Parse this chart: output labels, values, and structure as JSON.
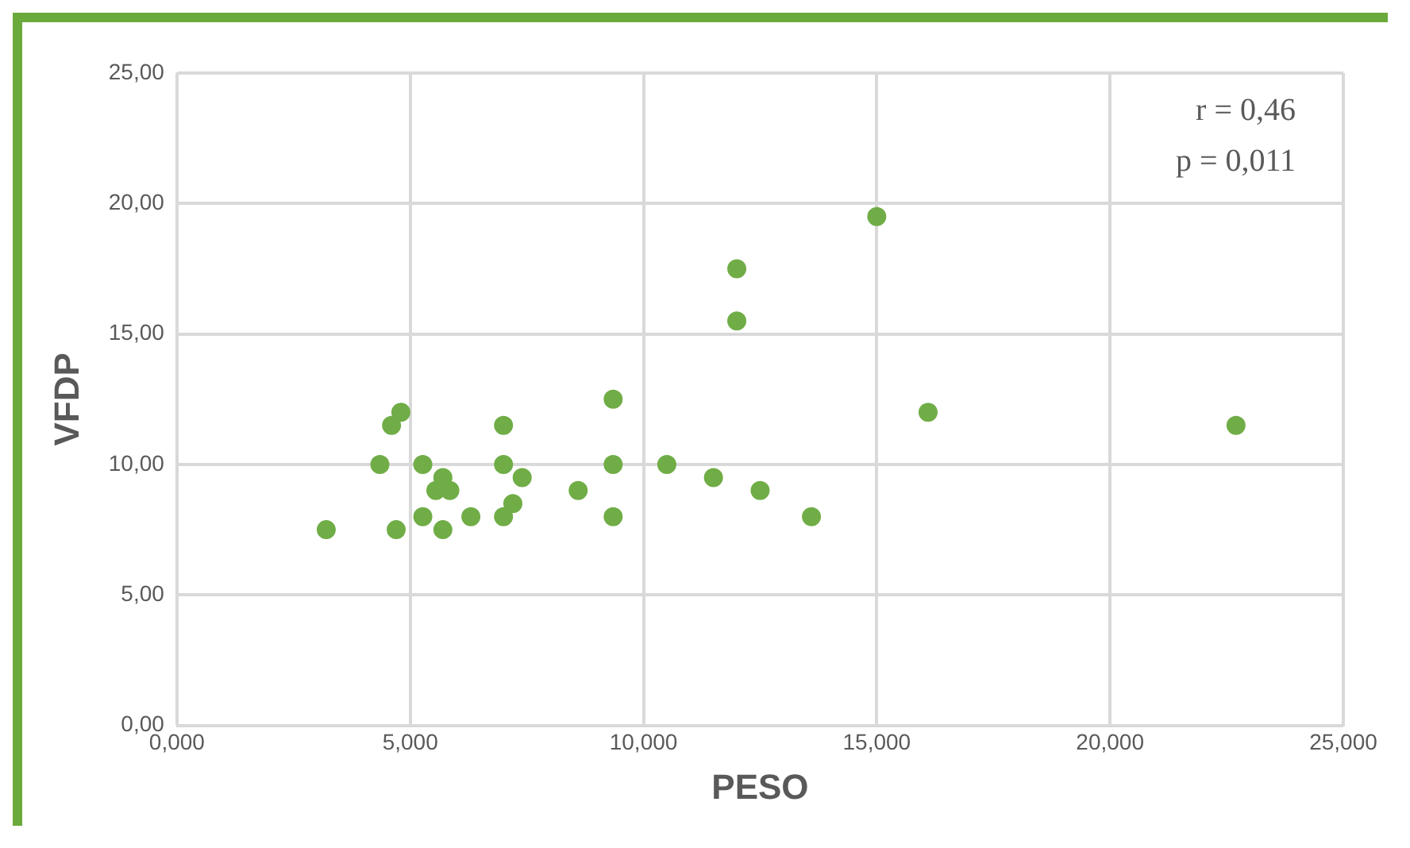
{
  "chart_data": {
    "type": "scatter",
    "xlabel": "PESO",
    "ylabel": "VFDP",
    "annotations": [
      "r = 0,46",
      "p = 0,011"
    ],
    "x": [
      3.2,
      4.35,
      4.6,
      4.7,
      4.8,
      5.27,
      5.27,
      5.55,
      5.7,
      5.85,
      5.7,
      6.3,
      7.0,
      7.0,
      7.0,
      7.2,
      7.4,
      8.6,
      9.35,
      9.35,
      9.35,
      10.5,
      11.5,
      12.0,
      12.0,
      12.5,
      13.6,
      15.0,
      16.1,
      22.7
    ],
    "series": [
      {
        "color": "#70ad47",
        "values": [
          7.5,
          10,
          11.5,
          7.5,
          12,
          10,
          8,
          9,
          9.5,
          9,
          7.5,
          8,
          11.5,
          10,
          8,
          8.5,
          9.5,
          9,
          12.5,
          10,
          8,
          10,
          9.5,
          17.5,
          15.5,
          9,
          8,
          19.5,
          12,
          11.5
        ]
      }
    ],
    "xlim": [
      0,
      25
    ],
    "xticks": [
      {
        "value": 0,
        "label": "0,000"
      },
      {
        "value": 5,
        "label": "5,000"
      },
      {
        "value": 10,
        "label": "10,000"
      },
      {
        "value": 15,
        "label": "15,000"
      },
      {
        "value": 20,
        "label": "20,000"
      },
      {
        "value": 25,
        "label": "25,000"
      }
    ],
    "ylim": [
      0,
      25
    ],
    "yticks": [
      {
        "value": 0,
        "label": "0,00"
      },
      {
        "value": 5,
        "label": "5,00"
      },
      {
        "value": 10,
        "label": "10,00"
      },
      {
        "value": 15,
        "label": "15,00"
      },
      {
        "value": 20,
        "label": "20,00"
      },
      {
        "value": 25,
        "label": "25,00"
      }
    ],
    "grid": true,
    "legend": false,
    "marker": "circle"
  }
}
